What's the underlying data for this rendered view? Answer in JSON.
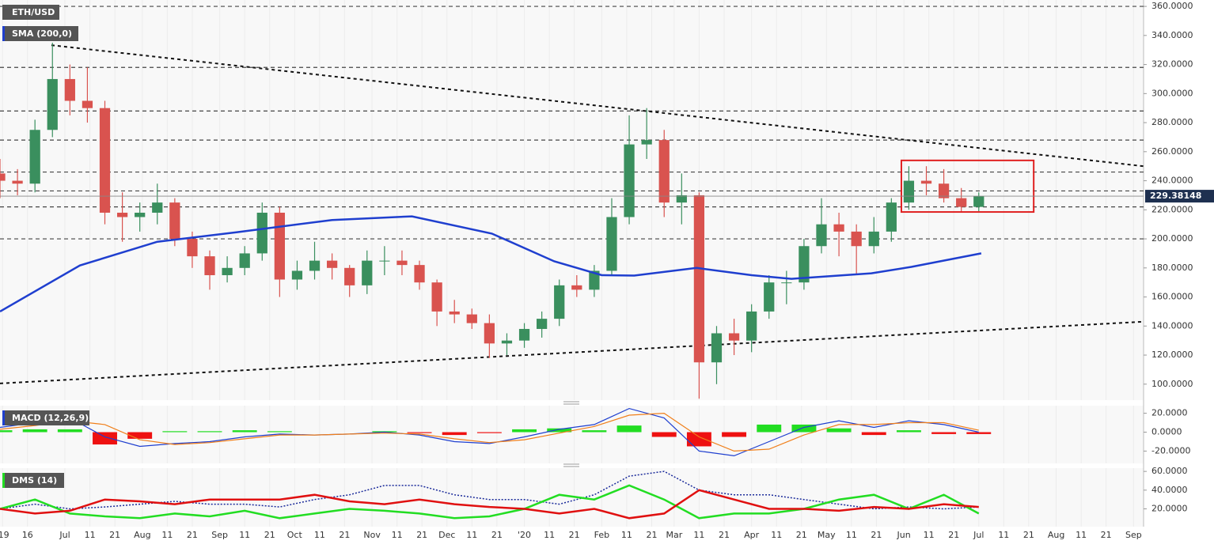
{
  "chart_data": [
    {
      "type": "candlestick",
      "title": "ETH/USD",
      "study": "SMA (200,0)",
      "xlim": [
        0,
        458
      ],
      "ylim": [
        89,
        364.4
      ],
      "xticks": [
        {
          "value": 1,
          "label": "'19"
        },
        {
          "value": 11,
          "label": "16"
        },
        {
          "value": 26,
          "label": "Jul"
        },
        {
          "value": 36,
          "label": "11"
        },
        {
          "value": 46,
          "label": "21"
        },
        {
          "value": 57,
          "label": "Aug"
        },
        {
          "value": 67,
          "label": "11"
        },
        {
          "value": 77,
          "label": "21"
        },
        {
          "value": 88,
          "label": "Sep"
        },
        {
          "value": 98,
          "label": "11"
        },
        {
          "value": 108,
          "label": "21"
        },
        {
          "value": 118,
          "label": "Oct"
        },
        {
          "value": 128,
          "label": "11"
        },
        {
          "value": 138,
          "label": "21"
        },
        {
          "value": 149,
          "label": "Nov"
        },
        {
          "value": 159,
          "label": "11"
        },
        {
          "value": 169,
          "label": "21"
        },
        {
          "value": 179,
          "label": "Dec"
        },
        {
          "value": 189,
          "label": "11"
        },
        {
          "value": 199,
          "label": "21"
        },
        {
          "value": 210,
          "label": "'20"
        },
        {
          "value": 220,
          "label": "11"
        },
        {
          "value": 230,
          "label": "21"
        },
        {
          "value": 241,
          "label": "Feb"
        },
        {
          "value": 251,
          "label": "11"
        },
        {
          "value": 261,
          "label": "21"
        },
        {
          "value": 270,
          "label": "Mar"
        },
        {
          "value": 280,
          "label": "11"
        },
        {
          "value": 290,
          "label": "21"
        },
        {
          "value": 301,
          "label": "Apr"
        },
        {
          "value": 311,
          "label": "11"
        },
        {
          "value": 321,
          "label": "21"
        },
        {
          "value": 331,
          "label": "May"
        },
        {
          "value": 341,
          "label": "11"
        },
        {
          "value": 351,
          "label": "21"
        },
        {
          "value": 362,
          "label": "Jun"
        },
        {
          "value": 372,
          "label": "11"
        },
        {
          "value": 382,
          "label": "21"
        },
        {
          "value": 392,
          "label": "Jul"
        },
        {
          "value": 402,
          "label": "11"
        },
        {
          "value": 412,
          "label": "21"
        },
        {
          "value": 423,
          "label": "Aug"
        },
        {
          "value": 433,
          "label": "11"
        },
        {
          "value": 443,
          "label": "21"
        },
        {
          "value": 454,
          "label": "Sep"
        }
      ],
      "yticks": [
        {
          "value": 360,
          "label": "360.0000"
        },
        {
          "value": 340,
          "label": "340.0000"
        },
        {
          "value": 320,
          "label": "320.0000"
        },
        {
          "value": 300,
          "label": "300.0000"
        },
        {
          "value": 280,
          "label": "280.0000"
        },
        {
          "value": 260,
          "label": "260.0000"
        },
        {
          "value": 240,
          "label": "240.0000"
        },
        {
          "value": 220,
          "label": "220.0000"
        },
        {
          "value": 200,
          "label": "200.0000"
        },
        {
          "value": 180,
          "label": "180.0000"
        },
        {
          "value": 160,
          "label": "160.0000"
        },
        {
          "value": 140,
          "label": "140.0000"
        },
        {
          "value": 120,
          "label": "120.0000"
        },
        {
          "value": 100,
          "label": "100.0000"
        }
      ],
      "x": [
        0,
        7,
        14,
        21,
        28,
        35,
        42,
        49,
        56,
        63,
        70,
        77,
        84,
        91,
        98,
        105,
        112,
        119,
        126,
        133,
        140,
        147,
        154,
        161,
        168,
        175,
        182,
        189,
        196,
        203,
        210,
        217,
        224,
        231,
        238,
        245,
        252,
        259,
        266,
        273,
        280,
        287,
        294,
        301,
        308,
        315,
        322,
        329,
        336,
        343,
        350,
        357,
        364,
        371,
        378,
        385,
        392
      ],
      "open": [
        245,
        240,
        238,
        275,
        310,
        295,
        290,
        218,
        215,
        218,
        225,
        200,
        188,
        175,
        180,
        190,
        218,
        172,
        178,
        185,
        180,
        168,
        185,
        185,
        182,
        170,
        150,
        148,
        142,
        128,
        130,
        138,
        145,
        168,
        165,
        178,
        215,
        265,
        268,
        225,
        230,
        115,
        135,
        130,
        150,
        170,
        170,
        195,
        210,
        205,
        195,
        205,
        225,
        240,
        238,
        228,
        222
      ],
      "high": [
        255,
        248,
        282,
        335,
        320,
        318,
        295,
        232,
        225,
        238,
        228,
        205,
        192,
        188,
        195,
        225,
        222,
        185,
        198,
        190,
        182,
        192,
        195,
        192,
        185,
        172,
        158,
        152,
        148,
        135,
        142,
        150,
        172,
        175,
        182,
        228,
        285,
        290,
        275,
        245,
        232,
        140,
        145,
        155,
        175,
        178,
        200,
        228,
        218,
        210,
        215,
        228,
        250,
        250,
        248,
        235,
        232
      ],
      "low": [
        228,
        230,
        232,
        270,
        285,
        280,
        210,
        198,
        205,
        210,
        195,
        180,
        165,
        170,
        175,
        185,
        160,
        165,
        172,
        172,
        160,
        162,
        175,
        175,
        165,
        140,
        142,
        138,
        118,
        120,
        125,
        132,
        140,
        160,
        160,
        175,
        210,
        255,
        215,
        210,
        90,
        100,
        120,
        122,
        145,
        155,
        165,
        190,
        188,
        175,
        190,
        198,
        220,
        230,
        225,
        218,
        219
      ],
      "close": [
        240,
        238,
        275,
        310,
        295,
        290,
        218,
        215,
        218,
        225,
        200,
        188,
        175,
        180,
        190,
        218,
        172,
        178,
        185,
        180,
        168,
        185,
        185,
        182,
        170,
        150,
        148,
        142,
        128,
        130,
        138,
        145,
        168,
        165,
        178,
        215,
        265,
        268,
        225,
        230,
        115,
        135,
        130,
        150,
        170,
        170,
        195,
        210,
        205,
        195,
        205,
        225,
        240,
        238,
        228,
        222,
        229.38148
      ],
      "up_color": "#3a8f5e",
      "down_color": "#d9534f",
      "sma": {
        "x": [
          0,
          32,
          63,
          95,
          133,
          165,
          197,
          222,
          241,
          254,
          279,
          301,
          317,
          349,
          365,
          393
        ],
        "values": [
          150,
          181.7,
          198,
          204.6,
          213,
          215.5,
          203.6,
          184.5,
          175,
          174.7,
          180,
          175,
          172.5,
          176.3,
          180.7,
          190
        ],
        "color": "#1f3fcf"
      },
      "levels": [
        360,
        318,
        288,
        268,
        246,
        233,
        222,
        200
      ],
      "trendlines": [
        {
          "x": [
            20.6,
            458
          ],
          "y": [
            333.3,
            250
          ]
        },
        {
          "x": [
            0,
            458
          ],
          "y": [
            100.5,
            143
          ]
        }
      ],
      "box": {
        "x": [
          361,
          414
        ],
        "y": [
          218.5,
          254
        ],
        "color": "#e02020"
      }
    },
    {
      "type": "macd",
      "title": "MACD (12,26,9)",
      "xlim": [
        0,
        458
      ],
      "ylim": [
        -33,
        28
      ],
      "yticks": [
        {
          "value": 20,
          "label": "20.0000"
        },
        {
          "value": 0,
          "label": "0.0000"
        },
        {
          "value": -20,
          "label": "-20.0000"
        }
      ],
      "x": [
        0,
        14,
        28,
        42,
        56,
        70,
        84,
        98,
        112,
        126,
        140,
        154,
        168,
        182,
        196,
        210,
        224,
        238,
        252,
        266,
        280,
        294,
        308,
        322,
        336,
        350,
        364,
        378,
        392
      ],
      "macd": [
        5,
        10,
        15,
        -5,
        -15,
        -12,
        -10,
        -5,
        -2,
        -3,
        -2,
        0,
        -3,
        -10,
        -12,
        -5,
        3,
        8,
        25,
        15,
        -20,
        -25,
        -10,
        5,
        12,
        5,
        12,
        8,
        0
      ],
      "signal": [
        3,
        7,
        12,
        8,
        -8,
        -13,
        -11,
        -7,
        -3,
        -3,
        -2,
        -1,
        -2,
        -7,
        -11,
        -8,
        -1,
        6,
        18,
        20,
        -5,
        -20,
        -18,
        -3,
        8,
        8,
        10,
        10,
        2
      ],
      "histogram": [
        2,
        3,
        3,
        -13,
        -7,
        1,
        1,
        2,
        1,
        0,
        0,
        1,
        -1,
        -3,
        -1,
        3,
        4,
        2,
        7,
        -5,
        -15,
        -5,
        8,
        8,
        4,
        -3,
        2,
        -2,
        -2
      ],
      "macd_color": "#1f3fcf",
      "signal_color": "#f07f1a",
      "up_color": "#22dd22",
      "down_color": "#ee1111"
    },
    {
      "type": "dms",
      "title": "DMS (14)",
      "xlim": [
        0,
        458
      ],
      "ylim": [
        1,
        63.5
      ],
      "yticks": [
        {
          "value": 60,
          "label": "60.0000"
        },
        {
          "value": 40,
          "label": "40.0000"
        },
        {
          "value": 20,
          "label": "20.0000"
        }
      ],
      "x": [
        0,
        14,
        28,
        42,
        56,
        70,
        84,
        98,
        112,
        126,
        140,
        154,
        168,
        182,
        196,
        210,
        224,
        238,
        252,
        266,
        280,
        294,
        308,
        322,
        336,
        350,
        364,
        378,
        392
      ],
      "plus_di": [
        20,
        30,
        15,
        12,
        10,
        15,
        12,
        18,
        10,
        15,
        20,
        18,
        15,
        10,
        12,
        20,
        35,
        30,
        45,
        30,
        10,
        15,
        15,
        20,
        30,
        35,
        20,
        35,
        15
      ],
      "minus_di": [
        20,
        15,
        18,
        30,
        28,
        25,
        30,
        30,
        30,
        35,
        28,
        25,
        30,
        25,
        22,
        20,
        15,
        20,
        10,
        15,
        40,
        30,
        20,
        20,
        18,
        22,
        20,
        25,
        22
      ],
      "adx": [
        20,
        25,
        20,
        22,
        25,
        28,
        25,
        25,
        22,
        30,
        35,
        45,
        45,
        35,
        30,
        30,
        25,
        35,
        55,
        60,
        40,
        35,
        35,
        30,
        25,
        20,
        22,
        20,
        22
      ],
      "plus_color": "#22dd22",
      "minus_color": "#e01010",
      "adx_color": "#1a2a9a"
    }
  ]
}
